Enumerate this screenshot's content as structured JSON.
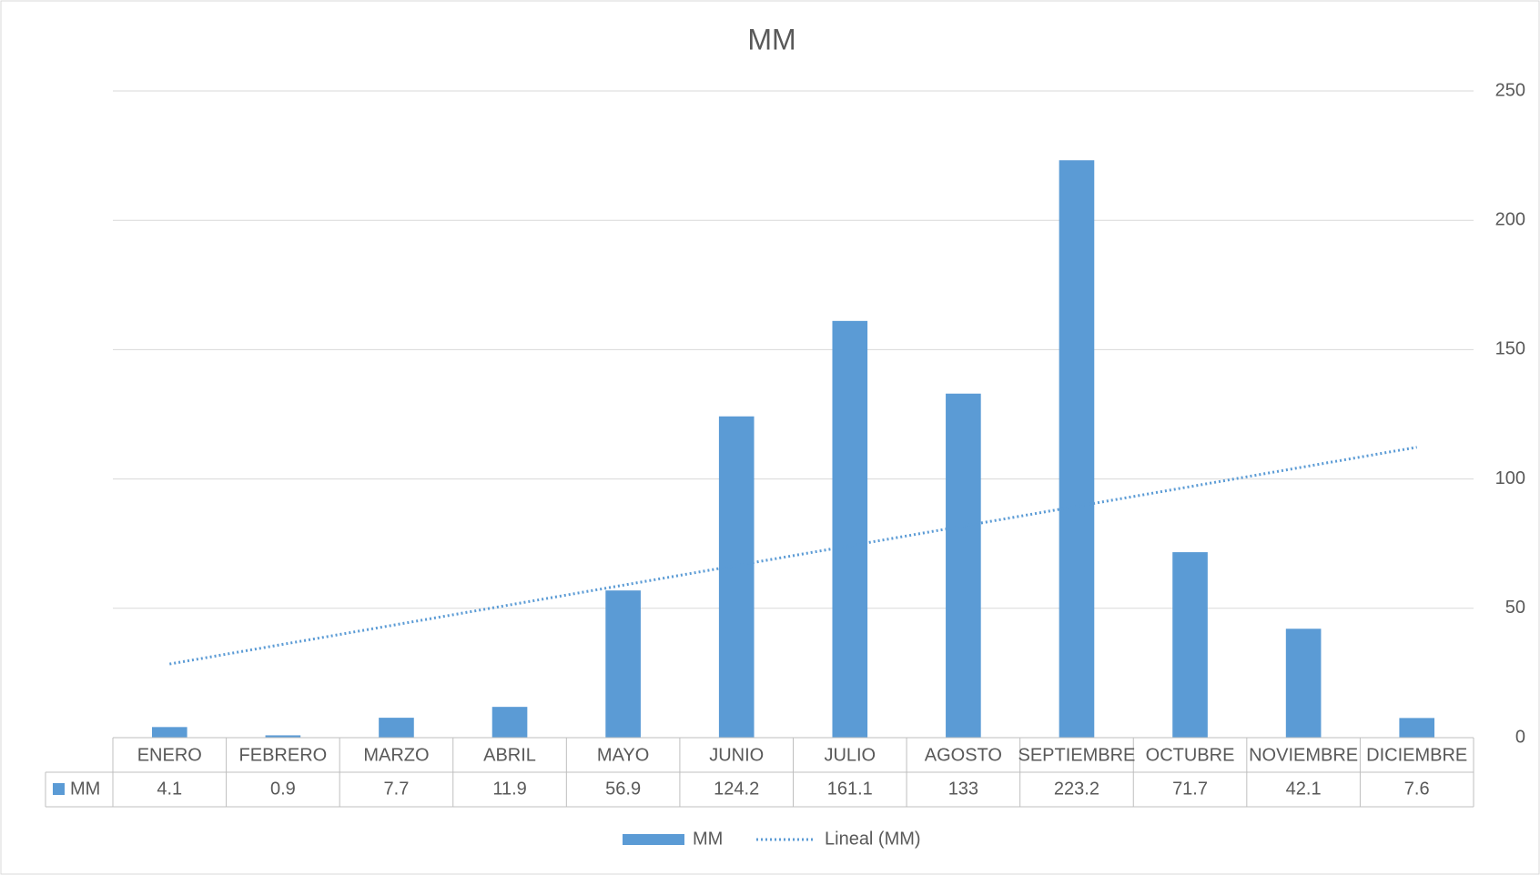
{
  "chart_data": {
    "type": "bar",
    "title": "MM",
    "categories": [
      "ENERO",
      "FEBRERO",
      "MARZO",
      "ABRIL",
      "MAYO",
      "JUNIO",
      "JULIO",
      "AGOSTO",
      "SEPTIEMBRE",
      "OCTUBRE",
      "NOVIEMBRE",
      "DICIEMBRE"
    ],
    "series": [
      {
        "name": "MM",
        "color": "#5b9bd5",
        "values": [
          4.1,
          0.9,
          7.7,
          11.9,
          56.9,
          124.2,
          161.1,
          133,
          223.2,
          71.7,
          42.1,
          7.6
        ]
      }
    ],
    "trendline": {
      "name": "Lineal (MM)",
      "kind": "linear",
      "color": "#5b9bd5"
    },
    "ylim": [
      0,
      250
    ],
    "yticks": [
      0,
      50,
      100,
      150,
      200,
      250
    ],
    "y_axis_side": "right",
    "grid": true,
    "data_table": true,
    "legend": "bottom"
  }
}
